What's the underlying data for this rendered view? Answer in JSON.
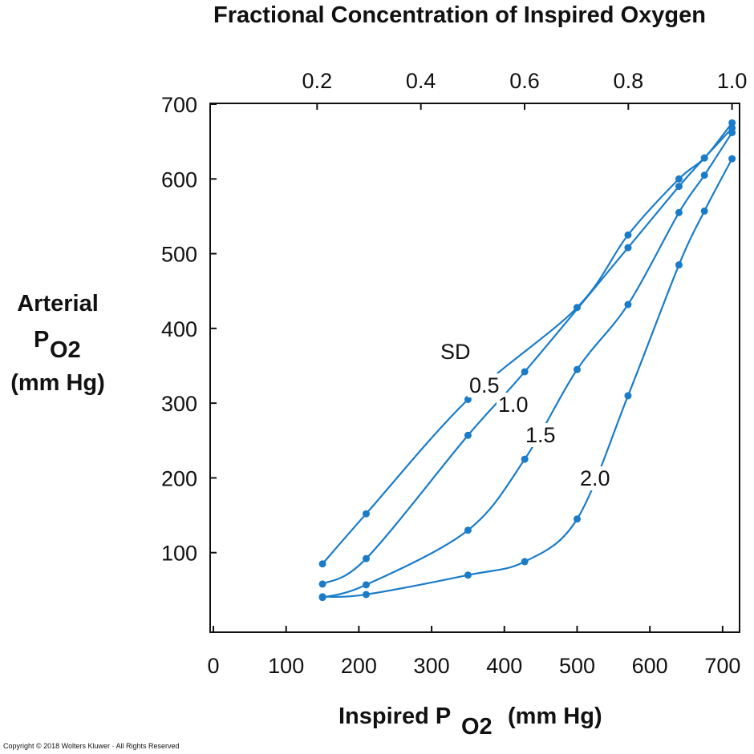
{
  "chart_data": {
    "type": "line",
    "title": "Fractional Concentration of Inspired Oxygen",
    "xlabel_main": "Inspired P",
    "xlabel_sub": "O2",
    "xlabel_unit": "(mm Hg)",
    "ylabel_line1": "Arterial",
    "ylabel_p": "P",
    "ylabel_sub": "O2",
    "ylabel_unit": "(mm Hg)",
    "xlim": [
      0,
      720
    ],
    "ylim": [
      0,
      700
    ],
    "x_ticks": [
      0,
      100,
      200,
      300,
      400,
      500,
      600,
      700
    ],
    "y_ticks": [
      100,
      200,
      300,
      400,
      500,
      600,
      700
    ],
    "top_axis_ticks": [
      "0.2",
      "0.4",
      "0.6",
      "0.8",
      "1.0"
    ],
    "legend_heading": "SD",
    "series": [
      {
        "name": "0.5",
        "x": [
          150,
          210,
          350,
          500,
          570,
          640,
          675,
          713
        ],
        "y": [
          85,
          152,
          305,
          428,
          525,
          600,
          628,
          675
        ]
      },
      {
        "name": "1.0",
        "x": [
          150,
          210,
          350,
          428,
          570,
          640,
          675,
          713
        ],
        "y": [
          58,
          92,
          257,
          342,
          508,
          590,
          628,
          668
        ]
      },
      {
        "name": "1.5",
        "x": [
          150,
          210,
          350,
          428,
          500,
          570,
          640,
          675,
          713
        ],
        "y": [
          40,
          57,
          130,
          225,
          345,
          432,
          555,
          605,
          662
        ]
      },
      {
        "name": "2.0",
        "x": [
          150,
          210,
          350,
          428,
          500,
          570,
          640,
          675,
          713
        ],
        "y": [
          41,
          44,
          70,
          88,
          145,
          310,
          485,
          557,
          627
        ]
      }
    ],
    "colors": {
      "series": "#1a7cc9",
      "axis": "#111111"
    }
  },
  "copyright": "Copyright © 2018 Wolters Kluwer · All Rights Reserved"
}
